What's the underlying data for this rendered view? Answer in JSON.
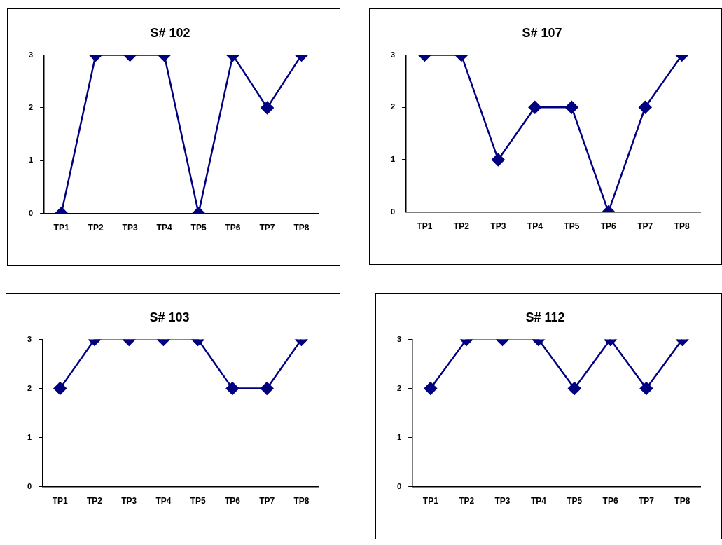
{
  "chart_data": [
    {
      "type": "line",
      "title": "S# 102",
      "categories": [
        "TP1",
        "TP2",
        "TP3",
        "TP4",
        "TP5",
        "TP6",
        "TP7",
        "TP8"
      ],
      "series": [
        {
          "color": "#000080",
          "values": [
            0,
            3,
            3,
            3,
            0,
            3,
            2,
            3
          ]
        }
      ],
      "ylim": [
        0,
        3
      ],
      "yticks": [
        0,
        1,
        2,
        3
      ],
      "grid": false,
      "legend": false,
      "marker": "diamond",
      "line_style": "solid"
    },
    {
      "type": "line",
      "title": "S# 107",
      "categories": [
        "TP1",
        "TP2",
        "TP3",
        "TP4",
        "TP5",
        "TP6",
        "TP7",
        "TP8"
      ],
      "series": [
        {
          "color": "#000080",
          "values": [
            3,
            3,
            1,
            2,
            2,
            0,
            2,
            3
          ]
        }
      ],
      "ylim": [
        0,
        3
      ],
      "yticks": [
        0,
        1,
        2,
        3
      ],
      "grid": false,
      "legend": false,
      "marker": "diamond",
      "line_style": "solid"
    },
    {
      "type": "line",
      "title": "S# 103",
      "categories": [
        "TP1",
        "TP2",
        "TP3",
        "TP4",
        "TP5",
        "TP6",
        "TP7",
        "TP8"
      ],
      "series": [
        {
          "color": "#000080",
          "values": [
            2,
            3,
            3,
            3,
            3,
            2,
            2,
            3
          ]
        }
      ],
      "ylim": [
        0,
        3
      ],
      "yticks": [
        0,
        1,
        2,
        3
      ],
      "grid": false,
      "legend": false,
      "marker": "diamond",
      "line_style": "solid"
    },
    {
      "type": "line",
      "title": "S# 112",
      "categories": [
        "TP1",
        "TP2",
        "TP3",
        "TP4",
        "TP5",
        "TP6",
        "TP7",
        "TP8"
      ],
      "series": [
        {
          "color": "#000080",
          "values": [
            2,
            3,
            3,
            3,
            2,
            3,
            2,
            3
          ]
        }
      ],
      "ylim": [
        0,
        3
      ],
      "yticks": [
        0,
        1,
        2,
        3
      ],
      "grid": false,
      "legend": false,
      "marker": "diamond",
      "line_style": "solid"
    }
  ]
}
